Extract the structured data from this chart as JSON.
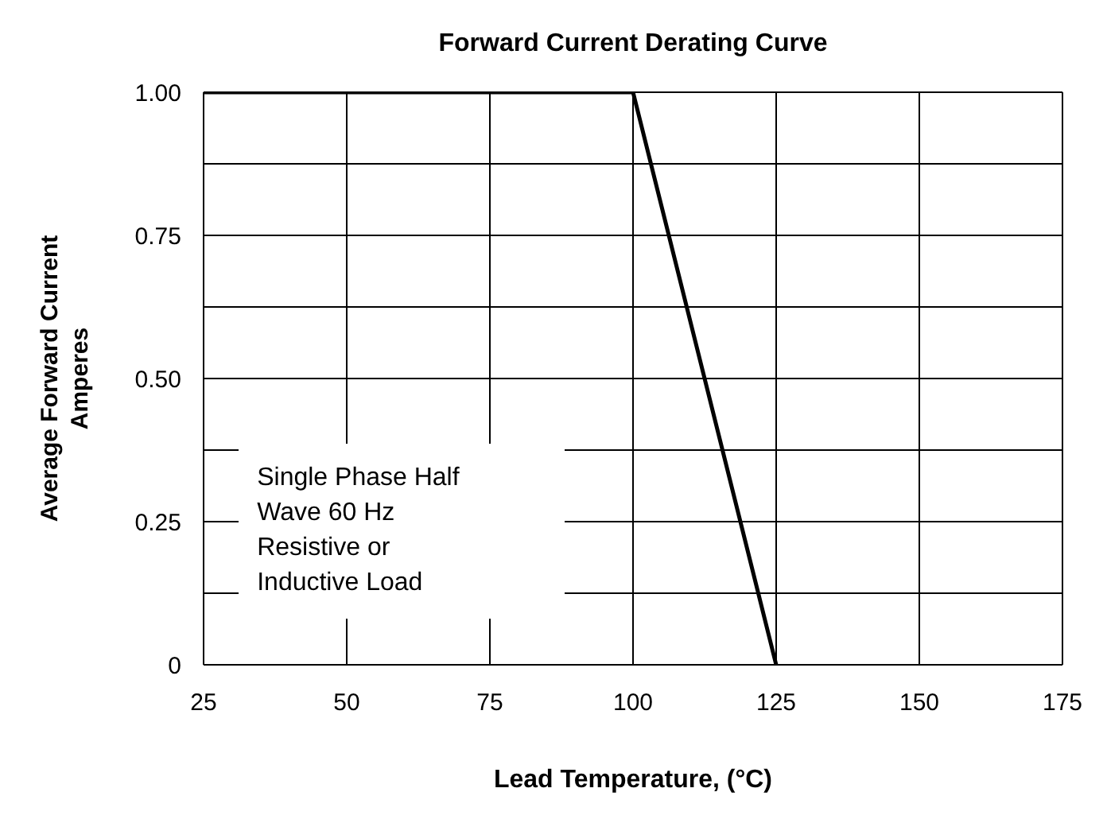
{
  "chart_data": {
    "type": "line",
    "title": "Forward Current Derating Curve",
    "xlabel": "Lead Temperature, (°C)",
    "ylabel": "Average Forward Current Amperes",
    "x": [
      25,
      100,
      125
    ],
    "series": [
      {
        "color": "#000000",
        "values": [
          1.0,
          1.0,
          0
        ]
      }
    ],
    "xlim": [
      25,
      175
    ],
    "xticks": [
      25,
      50,
      75,
      100,
      125,
      150,
      175
    ],
    "ylim": [
      0,
      1.0
    ],
    "yticks": [
      {
        "value": 0,
        "label": "0"
      },
      {
        "value": 0.125,
        "label": null
      },
      {
        "value": 0.25,
        "label": "0.25"
      },
      {
        "value": 0.375,
        "label": null
      },
      {
        "value": 0.5,
        "label": "0.50"
      },
      {
        "value": 0.625,
        "label": null
      },
      {
        "value": 0.75,
        "label": "0.75"
      },
      {
        "value": 0.875,
        "label": null
      },
      {
        "value": 1.0,
        "label": "1.00"
      }
    ],
    "annotations": [
      "Single Phase Half Wave 60 Hz Resistive or Inductive Load"
    ],
    "grid": true,
    "marker": "none",
    "line_style": "solid"
  }
}
